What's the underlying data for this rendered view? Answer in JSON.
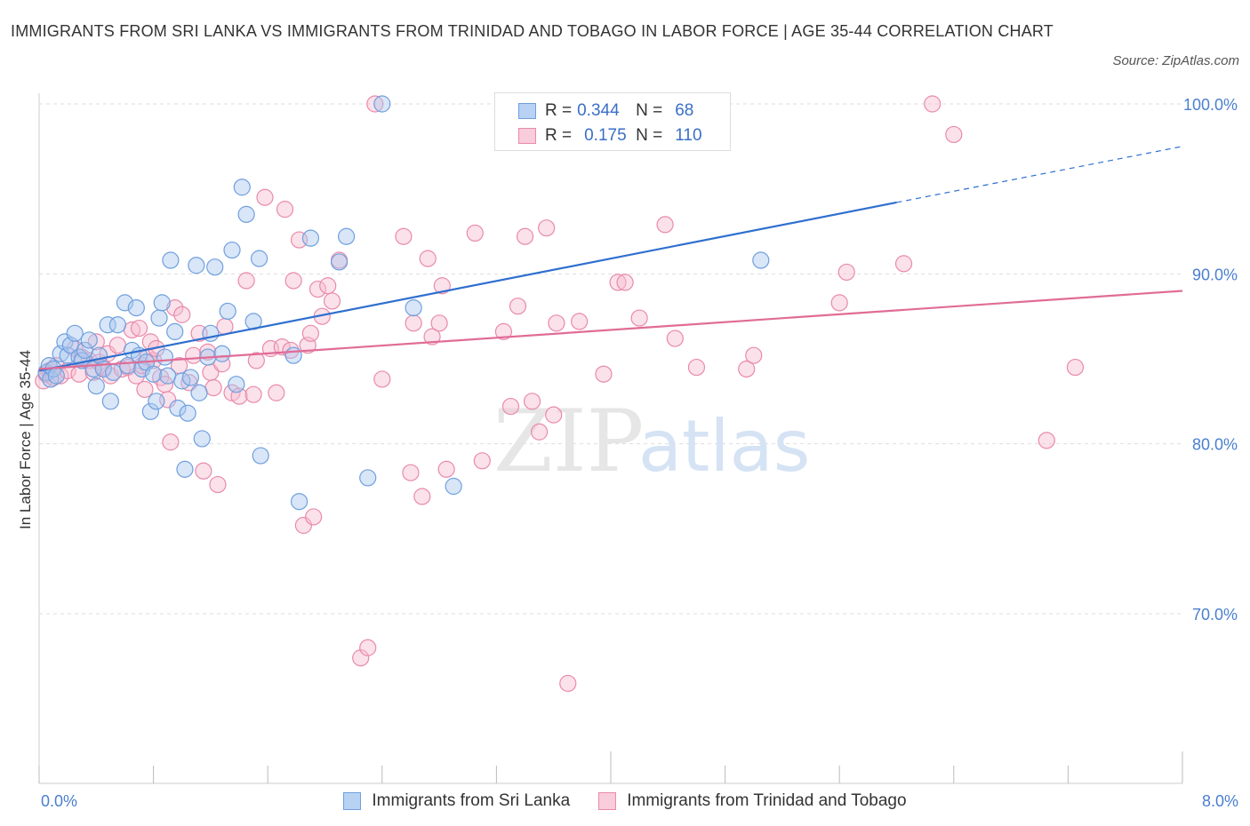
{
  "title": "IMMIGRANTS FROM SRI LANKA VS IMMIGRANTS FROM TRINIDAD AND TOBAGO IN LABOR FORCE | AGE 35-44 CORRELATION CHART",
  "source": "Source: ZipAtlas.com",
  "watermark": {
    "zip": "ZIP",
    "atlas": "atlas"
  },
  "colors": {
    "blue_fill": "#a9c8f0",
    "blue_stroke": "#6f9fde",
    "blue_line": "#2f6fcf",
    "pink_fill": "#f6bdd0",
    "pink_stroke": "#e98aab",
    "pink_line": "#e06c96",
    "axis_label": "#4a7fd0",
    "grid": "#dddddd"
  },
  "legend_top": [
    {
      "r_label": "R =",
      "r_value": "0.344",
      "n_label": "N =",
      "n_value": "68"
    },
    {
      "r_label": "R =",
      "r_value": "0.175",
      "n_label": "N =",
      "n_value": "110"
    }
  ],
  "chart_data": {
    "type": "scatter",
    "title": "IMMIGRANTS FROM SRI LANKA VS IMMIGRANTS FROM TRINIDAD AND TOBAGO IN LABOR FORCE | AGE 35-44 CORRELATION CHART",
    "xlabel": "",
    "ylabel": "In Labor Force | Age 35-44",
    "xlim": [
      0,
      8
    ],
    "ylim": [
      60,
      101
    ],
    "x_tick_labels": [
      "0.0%",
      "8.0%"
    ],
    "y_ticks": [
      70,
      80,
      90,
      100
    ],
    "y_tick_labels": [
      "70.0%",
      "80.0%",
      "90.0%",
      "100.0%"
    ],
    "grid": true,
    "series": [
      {
        "name": "Immigrants from Sri Lanka",
        "color": "#6f9fde",
        "trend": {
          "x0": 0,
          "y0": 84.3,
          "x1": 6.0,
          "y1": 94.2,
          "dashed_to_x": 8.0,
          "dashed_to_y": 97.5
        },
        "points": [
          [
            0.05,
            84.2
          ],
          [
            0.07,
            84.6
          ],
          [
            0.08,
            83.8
          ],
          [
            0.1,
            84.4
          ],
          [
            0.12,
            84.0
          ],
          [
            0.15,
            85.3
          ],
          [
            0.18,
            86.0
          ],
          [
            0.2,
            85.2
          ],
          [
            0.22,
            85.8
          ],
          [
            0.25,
            86.5
          ],
          [
            0.28,
            85.1
          ],
          [
            0.3,
            84.9
          ],
          [
            0.32,
            85.5
          ],
          [
            0.35,
            86.1
          ],
          [
            0.38,
            84.4
          ],
          [
            0.4,
            83.4
          ],
          [
            0.42,
            85.2
          ],
          [
            0.45,
            84.4
          ],
          [
            0.48,
            87.0
          ],
          [
            0.5,
            82.5
          ],
          [
            0.52,
            84.2
          ],
          [
            0.55,
            87.0
          ],
          [
            0.6,
            88.3
          ],
          [
            0.62,
            84.6
          ],
          [
            0.65,
            85.5
          ],
          [
            0.68,
            88.0
          ],
          [
            0.7,
            85.2
          ],
          [
            0.72,
            84.4
          ],
          [
            0.75,
            84.8
          ],
          [
            0.78,
            81.9
          ],
          [
            0.8,
            84.1
          ],
          [
            0.82,
            82.5
          ],
          [
            0.84,
            87.4
          ],
          [
            0.86,
            88.3
          ],
          [
            0.88,
            85.1
          ],
          [
            0.9,
            84.0
          ],
          [
            0.92,
            90.8
          ],
          [
            0.95,
            86.6
          ],
          [
            0.97,
            82.1
          ],
          [
            1.0,
            83.7
          ],
          [
            1.02,
            78.5
          ],
          [
            1.04,
            81.8
          ],
          [
            1.06,
            83.9
          ],
          [
            1.1,
            90.5
          ],
          [
            1.12,
            83.0
          ],
          [
            1.14,
            80.3
          ],
          [
            1.18,
            85.1
          ],
          [
            1.2,
            86.5
          ],
          [
            1.23,
            90.4
          ],
          [
            1.28,
            85.3
          ],
          [
            1.32,
            87.8
          ],
          [
            1.35,
            91.4
          ],
          [
            1.38,
            83.5
          ],
          [
            1.42,
            95.1
          ],
          [
            1.45,
            93.5
          ],
          [
            1.5,
            87.2
          ],
          [
            1.54,
            90.9
          ],
          [
            1.55,
            79.3
          ],
          [
            1.78,
            85.2
          ],
          [
            1.82,
            76.6
          ],
          [
            1.9,
            92.1
          ],
          [
            2.1,
            90.7
          ],
          [
            2.15,
            92.2
          ],
          [
            2.3,
            78.0
          ],
          [
            2.4,
            100.0
          ],
          [
            2.62,
            88.0
          ],
          [
            2.9,
            77.5
          ],
          [
            5.05,
            90.8
          ]
        ]
      },
      {
        "name": "Immigrants from Trinidad and Tobago",
        "color": "#e98aab",
        "trend": {
          "x0": 0,
          "y0": 84.4,
          "x1": 8.0,
          "y1": 89.0
        },
        "points": [
          [
            0.03,
            83.7
          ],
          [
            0.05,
            84.1
          ],
          [
            0.07,
            84.3
          ],
          [
            0.1,
            83.9
          ],
          [
            0.12,
            84.6
          ],
          [
            0.15,
            84.0
          ],
          [
            0.2,
            84.3
          ],
          [
            0.25,
            85.6
          ],
          [
            0.28,
            84.1
          ],
          [
            0.3,
            85.1
          ],
          [
            0.35,
            84.9
          ],
          [
            0.38,
            84.2
          ],
          [
            0.4,
            86.0
          ],
          [
            0.42,
            84.8
          ],
          [
            0.45,
            84.5
          ],
          [
            0.48,
            85.3
          ],
          [
            0.5,
            84.0
          ],
          [
            0.55,
            85.8
          ],
          [
            0.58,
            84.4
          ],
          [
            0.62,
            84.5
          ],
          [
            0.65,
            86.7
          ],
          [
            0.68,
            84.0
          ],
          [
            0.7,
            86.8
          ],
          [
            0.72,
            84.6
          ],
          [
            0.74,
            83.2
          ],
          [
            0.76,
            85.1
          ],
          [
            0.78,
            86.0
          ],
          [
            0.8,
            84.9
          ],
          [
            0.82,
            85.6
          ],
          [
            0.85,
            83.9
          ],
          [
            0.88,
            83.5
          ],
          [
            0.9,
            82.6
          ],
          [
            0.92,
            80.1
          ],
          [
            0.95,
            88.0
          ],
          [
            0.98,
            84.6
          ],
          [
            1.0,
            87.6
          ],
          [
            1.05,
            83.6
          ],
          [
            1.08,
            85.2
          ],
          [
            1.12,
            86.5
          ],
          [
            1.15,
            78.4
          ],
          [
            1.18,
            85.4
          ],
          [
            1.2,
            84.2
          ],
          [
            1.22,
            83.3
          ],
          [
            1.25,
            77.6
          ],
          [
            1.28,
            84.7
          ],
          [
            1.3,
            86.9
          ],
          [
            1.35,
            83.0
          ],
          [
            1.4,
            82.8
          ],
          [
            1.45,
            89.6
          ],
          [
            1.5,
            82.9
          ],
          [
            1.52,
            84.9
          ],
          [
            1.58,
            94.5
          ],
          [
            1.62,
            85.6
          ],
          [
            1.66,
            83.0
          ],
          [
            1.7,
            85.7
          ],
          [
            1.72,
            93.8
          ],
          [
            1.76,
            85.5
          ],
          [
            1.78,
            89.6
          ],
          [
            1.82,
            92.0
          ],
          [
            1.85,
            75.2
          ],
          [
            1.88,
            85.8
          ],
          [
            1.9,
            86.5
          ],
          [
            1.92,
            75.7
          ],
          [
            1.95,
            89.1
          ],
          [
            1.98,
            87.5
          ],
          [
            2.02,
            89.3
          ],
          [
            2.05,
            88.4
          ],
          [
            2.1,
            90.8
          ],
          [
            2.25,
            67.4
          ],
          [
            2.3,
            68.0
          ],
          [
            2.35,
            100.0
          ],
          [
            2.4,
            83.8
          ],
          [
            2.55,
            92.2
          ],
          [
            2.6,
            78.3
          ],
          [
            2.62,
            87.1
          ],
          [
            2.68,
            76.9
          ],
          [
            2.72,
            90.9
          ],
          [
            2.75,
            86.3
          ],
          [
            2.8,
            87.1
          ],
          [
            2.82,
            89.3
          ],
          [
            2.85,
            78.5
          ],
          [
            3.05,
            92.4
          ],
          [
            3.1,
            79.0
          ],
          [
            3.25,
            86.6
          ],
          [
            3.3,
            82.2
          ],
          [
            3.35,
            88.1
          ],
          [
            3.4,
            92.2
          ],
          [
            3.45,
            82.5
          ],
          [
            3.5,
            80.7
          ],
          [
            3.55,
            92.7
          ],
          [
            3.6,
            81.7
          ],
          [
            3.62,
            87.1
          ],
          [
            3.7,
            65.9
          ],
          [
            3.78,
            87.2
          ],
          [
            3.95,
            84.1
          ],
          [
            4.05,
            89.5
          ],
          [
            4.1,
            89.5
          ],
          [
            4.2,
            87.4
          ],
          [
            4.38,
            92.9
          ],
          [
            4.45,
            86.2
          ],
          [
            4.6,
            84.5
          ],
          [
            4.95,
            84.4
          ],
          [
            5.0,
            85.2
          ],
          [
            5.6,
            88.3
          ],
          [
            5.65,
            90.1
          ],
          [
            6.05,
            90.6
          ],
          [
            6.25,
            100.0
          ],
          [
            6.4,
            98.2
          ],
          [
            7.05,
            80.2
          ],
          [
            7.25,
            84.5
          ]
        ]
      }
    ]
  },
  "legend_bottom": [
    {
      "label": "Immigrants from Sri Lanka"
    },
    {
      "label": "Immigrants from Trinidad and Tobago"
    }
  ]
}
